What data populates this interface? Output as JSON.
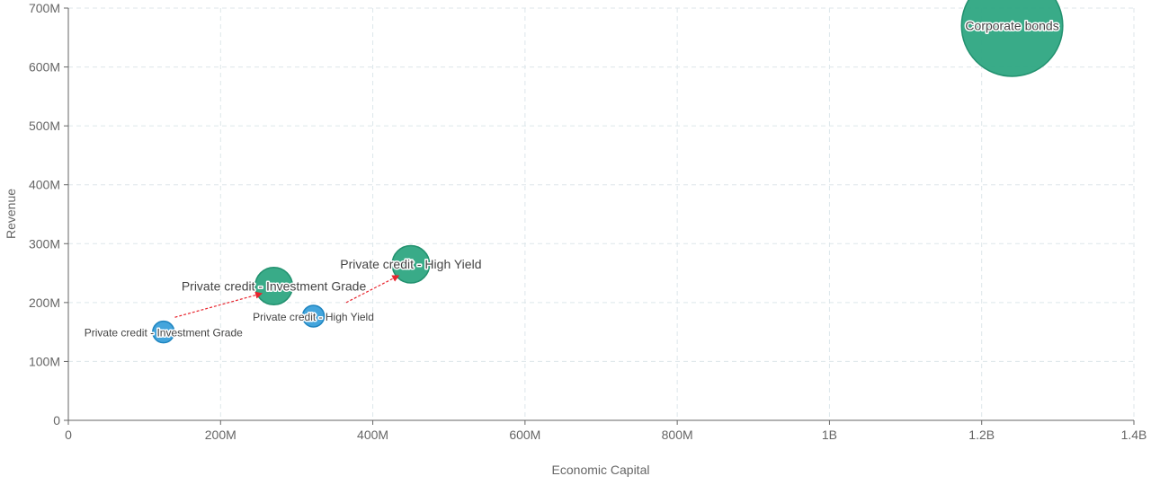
{
  "chart_data": {
    "type": "scatter",
    "title": "",
    "xlabel": "Economic Capital",
    "ylabel": "Revenue",
    "xlim": [
      0,
      1400000000
    ],
    "ylim": [
      0,
      700000000
    ],
    "x_ticks": [
      {
        "value": 0,
        "label": "0"
      },
      {
        "value": 200000000,
        "label": "200M"
      },
      {
        "value": 400000000,
        "label": "400M"
      },
      {
        "value": 600000000,
        "label": "600M"
      },
      {
        "value": 800000000,
        "label": "800M"
      },
      {
        "value": 1000000000,
        "label": "1B"
      },
      {
        "value": 1200000000,
        "label": "1.2B"
      },
      {
        "value": 1400000000,
        "label": "1.4B"
      }
    ],
    "y_ticks": [
      {
        "value": 0,
        "label": "0"
      },
      {
        "value": 100000000,
        "label": "100M"
      },
      {
        "value": 200000000,
        "label": "200M"
      },
      {
        "value": 300000000,
        "label": "300M"
      },
      {
        "value": 400000000,
        "label": "400M"
      },
      {
        "value": 500000000,
        "label": "500M"
      },
      {
        "value": 600000000,
        "label": "600M"
      },
      {
        "value": 700000000,
        "label": "700M"
      }
    ],
    "grid": true,
    "legend": "none",
    "colors": {
      "before": "#3aa0da",
      "after": "#2ea682",
      "arrow": "#e8252e",
      "grid": "#dde6ea",
      "axis": "#666666"
    },
    "series": [
      {
        "points": [
          {
            "label": "Private credit - Investment Grade",
            "x": 125000000,
            "y": 150000000,
            "size": 1
          },
          {
            "label": "Private credit - High Yield",
            "x": 322000000,
            "y": 177000000,
            "size": 1
          }
        ]
      },
      {
        "points": [
          {
            "label": "Private credit - Investment Grade",
            "x": 270000000,
            "y": 228000000,
            "size": 3
          },
          {
            "label": "Private credit - High Yield",
            "x": 450000000,
            "y": 265000000,
            "size": 3
          },
          {
            "label": "Corporate bonds",
            "x": 1240000000,
            "y": 670000000,
            "size": 22
          }
        ]
      }
    ],
    "arrows": [
      {
        "from": [
          140000000,
          175000000
        ],
        "to": [
          253000000,
          215000000
        ]
      },
      {
        "from": [
          365000000,
          200000000
        ],
        "to": [
          433000000,
          245000000
        ]
      }
    ]
  }
}
